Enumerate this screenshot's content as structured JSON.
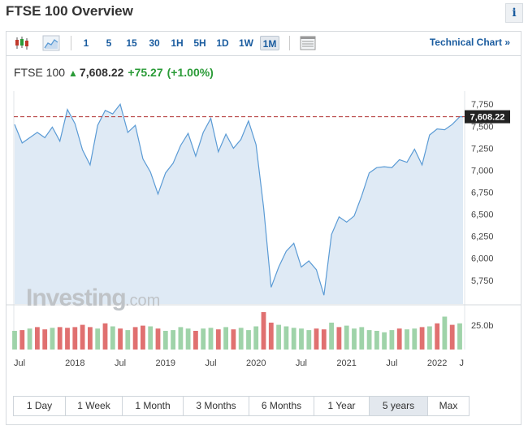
{
  "title": "FTSE 100 Overview",
  "info_label": "i",
  "toolbar": {
    "periods": [
      "1",
      "5",
      "15",
      "30",
      "1H",
      "5H",
      "1D",
      "1W",
      "1M"
    ],
    "active_period": "1M",
    "technical_chart_label": "Technical Chart »"
  },
  "quote": {
    "name": "FTSE 100",
    "price": "7,608.22",
    "change": "+75.27",
    "change_pct": "(+1.00%)"
  },
  "watermark": {
    "brand": "Investing",
    "suffix": ".com"
  },
  "ranges": [
    "1 Day",
    "1 Week",
    "1 Month",
    "3 Months",
    "6 Months",
    "1 Year",
    "5 years",
    "Max"
  ],
  "active_range": "5 years",
  "colors": {
    "up": "#2a9b37",
    "line": "#5b9bd5",
    "area": "#dfeaf5",
    "vol_up": "#9fd3a9",
    "vol_down": "#e07070",
    "accent": "#1a5c9f",
    "ref_line": "#b03030"
  },
  "chart_data": {
    "type": "area",
    "x_tick_labels": [
      "Jul",
      "2018",
      "Jul",
      "2019",
      "Jul",
      "2020",
      "Jul",
      "2021",
      "Jul",
      "2022",
      "J"
    ],
    "y_tick_labels": [
      "7,750",
      "7,500",
      "7,250",
      "7,000",
      "6,750",
      "6,500",
      "6,250",
      "6,000",
      "5,750"
    ],
    "y_ticks": [
      7750,
      7500,
      7250,
      7000,
      6750,
      6500,
      6250,
      6000,
      5750
    ],
    "ylim": [
      5480,
      7900
    ],
    "last_value_label": "7,608.22",
    "last_value": 7608.22,
    "volume_label": "25.0b",
    "x": [
      "2017-05",
      "2017-06",
      "2017-07",
      "2017-08",
      "2017-09",
      "2017-10",
      "2017-11",
      "2017-12",
      "2018-01",
      "2018-02",
      "2018-03",
      "2018-04",
      "2018-05",
      "2018-06",
      "2018-07",
      "2018-08",
      "2018-09",
      "2018-10",
      "2018-11",
      "2018-12",
      "2019-01",
      "2019-02",
      "2019-03",
      "2019-04",
      "2019-05",
      "2019-06",
      "2019-07",
      "2019-08",
      "2019-09",
      "2019-10",
      "2019-11",
      "2019-12",
      "2020-01",
      "2020-02",
      "2020-03",
      "2020-04",
      "2020-05",
      "2020-06",
      "2020-07",
      "2020-08",
      "2020-09",
      "2020-10",
      "2020-11",
      "2020-12",
      "2021-01",
      "2021-02",
      "2021-03",
      "2021-04",
      "2021-05",
      "2021-06",
      "2021-07",
      "2021-08",
      "2021-09",
      "2021-10",
      "2021-11",
      "2021-12",
      "2022-01",
      "2022-02",
      "2022-03",
      "2022-04"
    ],
    "values": [
      7520,
      7310,
      7370,
      7430,
      7370,
      7490,
      7330,
      7690,
      7530,
      7230,
      7060,
      7510,
      7680,
      7640,
      7750,
      7430,
      7510,
      7130,
      6980,
      6730,
      6970,
      7080,
      7280,
      7420,
      7160,
      7430,
      7590,
      7210,
      7410,
      7250,
      7350,
      7560,
      7290,
      6580,
      5670,
      5900,
      6080,
      6170,
      5900,
      5970,
      5870,
      5580,
      6270,
      6470,
      6410,
      6480,
      6710,
      6970,
      7030,
      7040,
      7030,
      7120,
      7090,
      7240,
      7060,
      7400,
      7470,
      7460,
      7520,
      7608
    ]
  },
  "volume": {
    "values": [
      0.5,
      0.52,
      0.56,
      0.6,
      0.54,
      0.58,
      0.6,
      0.58,
      0.6,
      0.66,
      0.6,
      0.56,
      0.7,
      0.62,
      0.56,
      0.52,
      0.6,
      0.64,
      0.62,
      0.56,
      0.5,
      0.52,
      0.6,
      0.56,
      0.5,
      0.56,
      0.58,
      0.54,
      0.6,
      0.54,
      0.58,
      0.52,
      0.62,
      1.0,
      0.72,
      0.66,
      0.62,
      0.58,
      0.56,
      0.52,
      0.56,
      0.54,
      0.72,
      0.6,
      0.64,
      0.56,
      0.6,
      0.52,
      0.5,
      0.46,
      0.52,
      0.56,
      0.54,
      0.56,
      0.6,
      0.62,
      0.7,
      0.88,
      0.66,
      0.7
    ],
    "direction": [
      "u",
      "d",
      "u",
      "d",
      "d",
      "u",
      "d",
      "d",
      "d",
      "d",
      "d",
      "u",
      "d",
      "u",
      "d",
      "u",
      "d",
      "d",
      "u",
      "d",
      "u",
      "u",
      "u",
      "u",
      "d",
      "u",
      "u",
      "d",
      "u",
      "d",
      "u",
      "u",
      "u",
      "d",
      "d",
      "u",
      "u",
      "u",
      "u",
      "u",
      "d",
      "d",
      "u",
      "d",
      "u",
      "u",
      "u",
      "u",
      "u",
      "u",
      "u",
      "d",
      "u",
      "u",
      "d",
      "u",
      "d",
      "u",
      "d",
      "u"
    ]
  }
}
